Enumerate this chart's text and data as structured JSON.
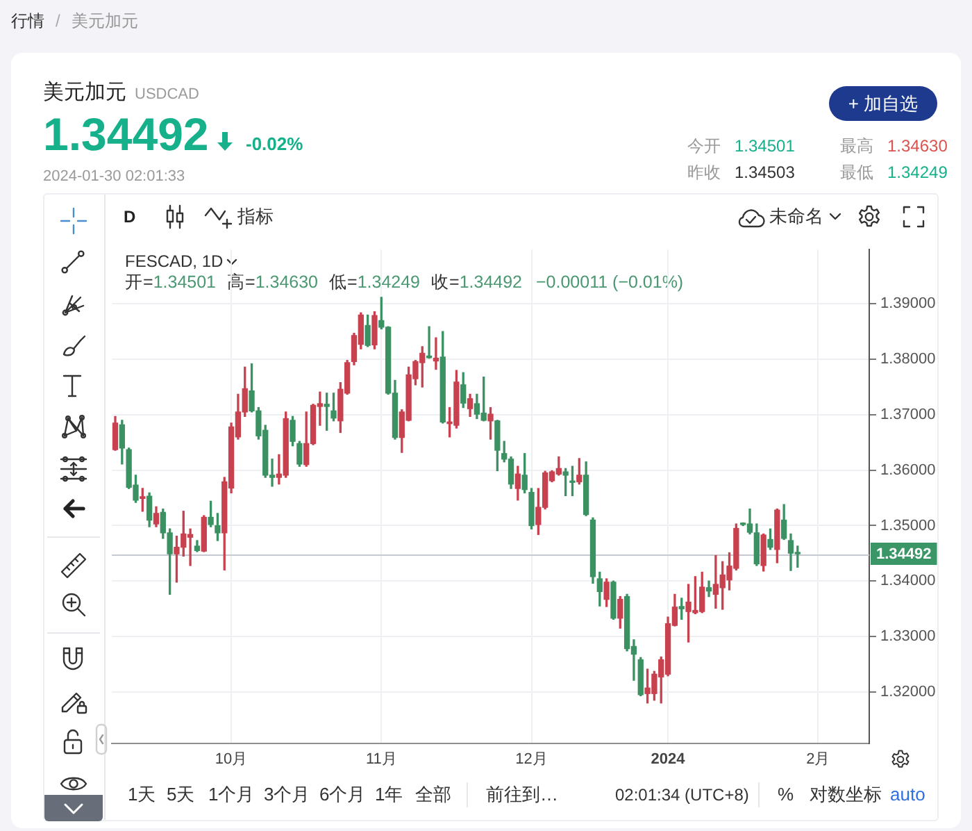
{
  "chart_data": {
    "type": "candlestick",
    "title": "美元加元",
    "subtitle": "USDCAD",
    "categories": [
      null,
      null,
      null,
      null,
      null,
      null,
      null,
      null,
      null,
      null,
      null,
      null,
      null,
      null,
      null,
      null,
      null,
      "10月",
      null,
      null,
      null,
      null,
      null,
      null,
      null,
      null,
      null,
      null,
      null,
      null,
      null,
      null,
      null,
      null,
      null,
      null,
      null,
      null,
      null,
      "11月",
      null,
      null,
      null,
      null,
      null,
      null,
      null,
      null,
      null,
      null,
      null,
      null,
      null,
      null,
      null,
      null,
      null,
      null,
      null,
      null,
      null,
      "12月",
      null,
      null,
      null,
      null,
      null,
      null,
      null,
      null,
      null,
      null,
      null,
      null,
      null,
      null,
      null,
      null,
      null,
      null,
      null,
      "2024",
      null,
      null,
      null,
      null,
      null,
      null,
      null,
      null,
      null,
      null,
      null,
      null,
      null,
      null,
      null,
      null,
      null,
      null,
      null,
      null,
      null,
      "2月",
      null,
      null,
      null,
      null,
      null,
      null,
      null
    ],
    "ohlc": [
      [
        1.3637,
        1.3697,
        1.3636,
        1.3685
      ],
      [
        1.3682,
        1.369,
        1.3611,
        1.364
      ],
      [
        1.3637,
        1.364,
        1.3567,
        1.3569
      ],
      [
        1.3573,
        1.3591,
        1.3542,
        1.3546
      ],
      [
        1.3549,
        1.3567,
        1.3526,
        1.3552
      ],
      [
        1.3553,
        1.3559,
        1.3498,
        1.351
      ],
      [
        1.3503,
        1.3534,
        1.3498,
        1.3522
      ],
      [
        1.3524,
        1.353,
        1.3477,
        1.3487
      ],
      [
        1.3487,
        1.3494,
        1.3376,
        1.3449
      ],
      [
        1.3449,
        1.3481,
        1.3398,
        1.3461
      ],
      [
        1.3461,
        1.3526,
        1.3445,
        1.3485
      ],
      [
        1.3479,
        1.3494,
        1.3428,
        1.3484
      ],
      [
        1.3463,
        1.3473,
        1.3453,
        1.3455
      ],
      [
        1.3454,
        1.3518,
        1.3453,
        1.3515
      ],
      [
        1.3515,
        1.3544,
        1.3498,
        1.3502
      ],
      [
        1.35,
        1.3522,
        1.3473,
        1.3487
      ],
      [
        1.3487,
        1.3587,
        1.342,
        1.3579
      ],
      [
        1.3568,
        1.3685,
        1.3559,
        1.3678
      ],
      [
        1.366,
        1.3737,
        1.3656,
        1.3705
      ],
      [
        1.3705,
        1.3786,
        1.3697,
        1.3747
      ],
      [
        1.3743,
        1.3792,
        1.3705,
        1.3707
      ],
      [
        1.3707,
        1.3713,
        1.3656,
        1.3662
      ],
      [
        1.3672,
        1.3681,
        1.3587,
        1.3591
      ],
      [
        1.3591,
        1.362,
        1.3571,
        1.3587
      ],
      [
        1.3587,
        1.3628,
        1.3575,
        1.3593
      ],
      [
        1.3591,
        1.3705,
        1.3587,
        1.3693
      ],
      [
        1.369,
        1.3697,
        1.3644,
        1.3652
      ],
      [
        1.3648,
        1.3652,
        1.3607,
        1.3611
      ],
      [
        1.361,
        1.3705,
        1.3607,
        1.3648
      ],
      [
        1.3648,
        1.3719,
        1.3646,
        1.3717
      ],
      [
        1.3715,
        1.3741,
        1.3681,
        1.372
      ],
      [
        1.3719,
        1.3739,
        1.3672,
        1.3715
      ],
      [
        1.3707,
        1.3739,
        1.3689,
        1.3694
      ],
      [
        1.3689,
        1.3758,
        1.3668,
        1.3746
      ],
      [
        1.3739,
        1.3798,
        1.3737,
        1.3794
      ],
      [
        1.3796,
        1.3847,
        1.379,
        1.3843
      ],
      [
        1.3827,
        1.3884,
        1.3819,
        1.388
      ],
      [
        1.3861,
        1.388,
        1.3823,
        1.3825
      ],
      [
        1.3826,
        1.3886,
        1.3819,
        1.3879
      ],
      [
        1.387,
        1.3912,
        1.3855,
        1.3858
      ],
      [
        1.3858,
        1.3859,
        1.3737,
        1.3739
      ],
      [
        1.3739,
        1.3762,
        1.3656,
        1.3659
      ],
      [
        1.3659,
        1.3709,
        1.3632,
        1.3705
      ],
      [
        1.369,
        1.3786,
        1.3689,
        1.3772
      ],
      [
        1.3765,
        1.3798,
        1.3754,
        1.3796
      ],
      [
        1.3794,
        1.3823,
        1.375,
        1.3811
      ],
      [
        1.3806,
        1.3859,
        1.3802,
        1.3803
      ],
      [
        1.3797,
        1.3839,
        1.3782,
        1.3802
      ],
      [
        1.3804,
        1.385,
        1.3685,
        1.3687
      ],
      [
        1.3684,
        1.3713,
        1.366,
        1.3687
      ],
      [
        1.3681,
        1.378,
        1.3676,
        1.3759
      ],
      [
        1.3754,
        1.3776,
        1.3713,
        1.3721
      ],
      [
        1.3711,
        1.3737,
        1.3697,
        1.3729
      ],
      [
        1.372,
        1.3737,
        1.3693,
        1.3701
      ],
      [
        1.3703,
        1.3768,
        1.3689,
        1.369
      ],
      [
        1.3689,
        1.3713,
        1.3656,
        1.3701
      ],
      [
        1.3689,
        1.369,
        1.3599,
        1.3636
      ],
      [
        1.363,
        1.3652,
        1.3615,
        1.362
      ],
      [
        1.362,
        1.3624,
        1.3567,
        1.3575
      ],
      [
        1.3567,
        1.3607,
        1.3546,
        1.3593
      ],
      [
        1.3591,
        1.363,
        1.3559,
        1.3565
      ],
      [
        1.356,
        1.3567,
        1.3494,
        1.35
      ],
      [
        1.3502,
        1.3567,
        1.3484,
        1.3533
      ],
      [
        1.3533,
        1.3598,
        1.353,
        1.3595
      ],
      [
        1.3581,
        1.3599,
        1.3579,
        1.3597
      ],
      [
        1.3593,
        1.3624,
        1.3591,
        1.3603
      ],
      [
        1.3597,
        1.3603,
        1.3554,
        1.3591
      ],
      [
        1.358,
        1.3607,
        1.3554,
        1.3578
      ],
      [
        1.3579,
        1.3621,
        1.3575,
        1.3591
      ],
      [
        1.3591,
        1.3615,
        1.3518,
        1.352
      ],
      [
        1.351,
        1.3514,
        1.3396,
        1.3408
      ],
      [
        1.3404,
        1.3416,
        1.3355,
        1.3381
      ],
      [
        1.3367,
        1.3404,
        1.3354,
        1.3398
      ],
      [
        1.3398,
        1.34,
        1.3331,
        1.3333
      ],
      [
        1.3333,
        1.3372,
        1.3315,
        1.3367
      ],
      [
        1.3372,
        1.3376,
        1.3274,
        1.3278
      ],
      [
        1.3282,
        1.3294,
        1.3221,
        1.3268
      ],
      [
        1.3258,
        1.3262,
        1.3193,
        1.3195
      ],
      [
        1.3197,
        1.3241,
        1.318,
        1.3207
      ],
      [
        1.3197,
        1.3237,
        1.3185,
        1.3232
      ],
      [
        1.3227,
        1.3263,
        1.318,
        1.3258
      ],
      [
        1.3232,
        1.3335,
        1.3229,
        1.3323
      ],
      [
        1.332,
        1.3376,
        1.3319,
        1.3353
      ],
      [
        1.3354,
        1.3369,
        1.3331,
        1.335
      ],
      [
        1.3345,
        1.3394,
        1.329,
        1.3362
      ],
      [
        1.3343,
        1.3408,
        1.3341,
        1.3347
      ],
      [
        1.3345,
        1.3416,
        1.3343,
        1.3389
      ],
      [
        1.3388,
        1.34,
        1.3372,
        1.3382
      ],
      [
        1.3376,
        1.3446,
        1.3351,
        1.3394
      ],
      [
        1.3388,
        1.3435,
        1.3349,
        1.3411
      ],
      [
        1.3402,
        1.3451,
        1.3384,
        1.3427
      ],
      [
        1.3423,
        1.3503,
        1.342,
        1.3495
      ],
      [
        1.3503,
        1.3505,
        1.35,
        1.3502
      ],
      [
        1.3503,
        1.353,
        1.3485,
        1.3488
      ],
      [
        1.3487,
        1.3503,
        1.3428,
        1.3431
      ],
      [
        1.3428,
        1.3485,
        1.3418,
        1.3483
      ],
      [
        1.3475,
        1.3494,
        1.3457,
        1.3461
      ],
      [
        1.3457,
        1.353,
        1.3433,
        1.3528
      ],
      [
        1.351,
        1.3538,
        1.3475,
        1.3477
      ],
      [
        1.3473,
        1.3485,
        1.3419,
        1.34503
      ],
      [
        1.34501,
        1.3463,
        1.34249,
        1.34492
      ],
      null,
      null,
      null,
      null,
      null,
      null,
      null,
      null,
      null,
      null
    ],
    "colors": [
      "#c8414f",
      "#3c9163",
      "#3c9163",
      "#3c9163",
      "#c8414f",
      "#3c9163",
      "#c8414f",
      "#3c9163",
      "#3c9163",
      "#c8414f",
      "#c8414f",
      "#c8414f",
      "#3c9163",
      "#c8414f",
      "#3c9163",
      "#3c9163",
      "#c8414f",
      "#c8414f",
      "#c8414f",
      "#c8414f",
      "#3c9163",
      "#3c9163",
      "#3c9163",
      "#3c9163",
      "#c8414f",
      "#c8414f",
      "#3c9163",
      "#3c9163",
      "#c8414f",
      "#c8414f",
      "#c8414f",
      "#3c9163",
      "#3c9163",
      "#c8414f",
      "#c8414f",
      "#c8414f",
      "#c8414f",
      "#3c9163",
      "#c8414f",
      "#3c9163",
      "#3c9163",
      "#3c9163",
      "#c8414f",
      "#c8414f",
      "#c8414f",
      "#c8414f",
      "#3c9163",
      "#c8414f",
      "#3c9163",
      "#c8414f",
      "#c8414f",
      "#3c9163",
      "#c8414f",
      "#3c9163",
      "#3c9163",
      "#c8414f",
      "#3c9163",
      "#3c9163",
      "#3c9163",
      "#c8414f",
      "#3c9163",
      "#3c9163",
      "#c8414f",
      "#c8414f",
      "#c8414f",
      "#c8414f",
      "#3c9163",
      "#3c9163",
      "#c8414f",
      "#3c9163",
      "#3c9163",
      "#3c9163",
      "#c8414f",
      "#3c9163",
      "#c8414f",
      "#3c9163",
      "#3c9163",
      "#3c9163",
      "#c8414f",
      "#c8414f",
      "#c8414f",
      "#c8414f",
      "#c8414f",
      "#3c9163",
      "#c8414f",
      "#c8414f",
      "#c8414f",
      "#3c9163",
      "#c8414f",
      "#c8414f",
      "#c8414f",
      "#c8414f",
      "#3c9163",
      "#3c9163",
      "#3c9163",
      "#c8414f",
      "#3c9163",
      "#c8414f",
      "#3c9163",
      "#3c9163",
      "#3c9163",
      null,
      null,
      null,
      null,
      null,
      null,
      null,
      null,
      null,
      null
    ],
    "ylim": [
      1.3107,
      1.3998
    ],
    "yticks": [
      {
        "value": 1.32,
        "label": "1.32000"
      },
      {
        "value": 1.33,
        "label": "1.33000"
      },
      {
        "value": 1.34,
        "label": "1.34000"
      },
      {
        "value": 1.35,
        "label": "1.35000"
      },
      {
        "value": 1.36,
        "label": "1.36000"
      },
      {
        "value": 1.37,
        "label": "1.37000"
      },
      {
        "value": 1.38,
        "label": "1.38000"
      },
      {
        "value": 1.39,
        "label": "1.39000"
      }
    ],
    "grid": true,
    "ref_lines": [
      {
        "axis": "y",
        "value": 1.34492,
        "label": "1.34492",
        "color": "#c6cad0"
      }
    ],
    "annotations": [
      "行情",
      "/",
      "美元加元",
      "1.34492",
      "-0.02%",
      "2024-01-30 02:01:33",
      "+ 加自选",
      "今开",
      "1.34501",
      "最高",
      "1.34630",
      "昨收",
      "1.34503",
      "最低",
      "1.34249",
      "D",
      "指标",
      "未命名",
      "FESCAD, 1D",
      "开=",
      "1.34501",
      "高=",
      "1.34630",
      "低=",
      "1.34249",
      "收=",
      "1.34492",
      "−0.00011 (−0.01%)",
      "1天",
      "5天",
      "1个月",
      "3个月",
      "6个月",
      "1年",
      "全部",
      "前往到…",
      "02:01:34 (UTC+8)",
      "%",
      "对数坐标",
      "auto"
    ]
  }
}
